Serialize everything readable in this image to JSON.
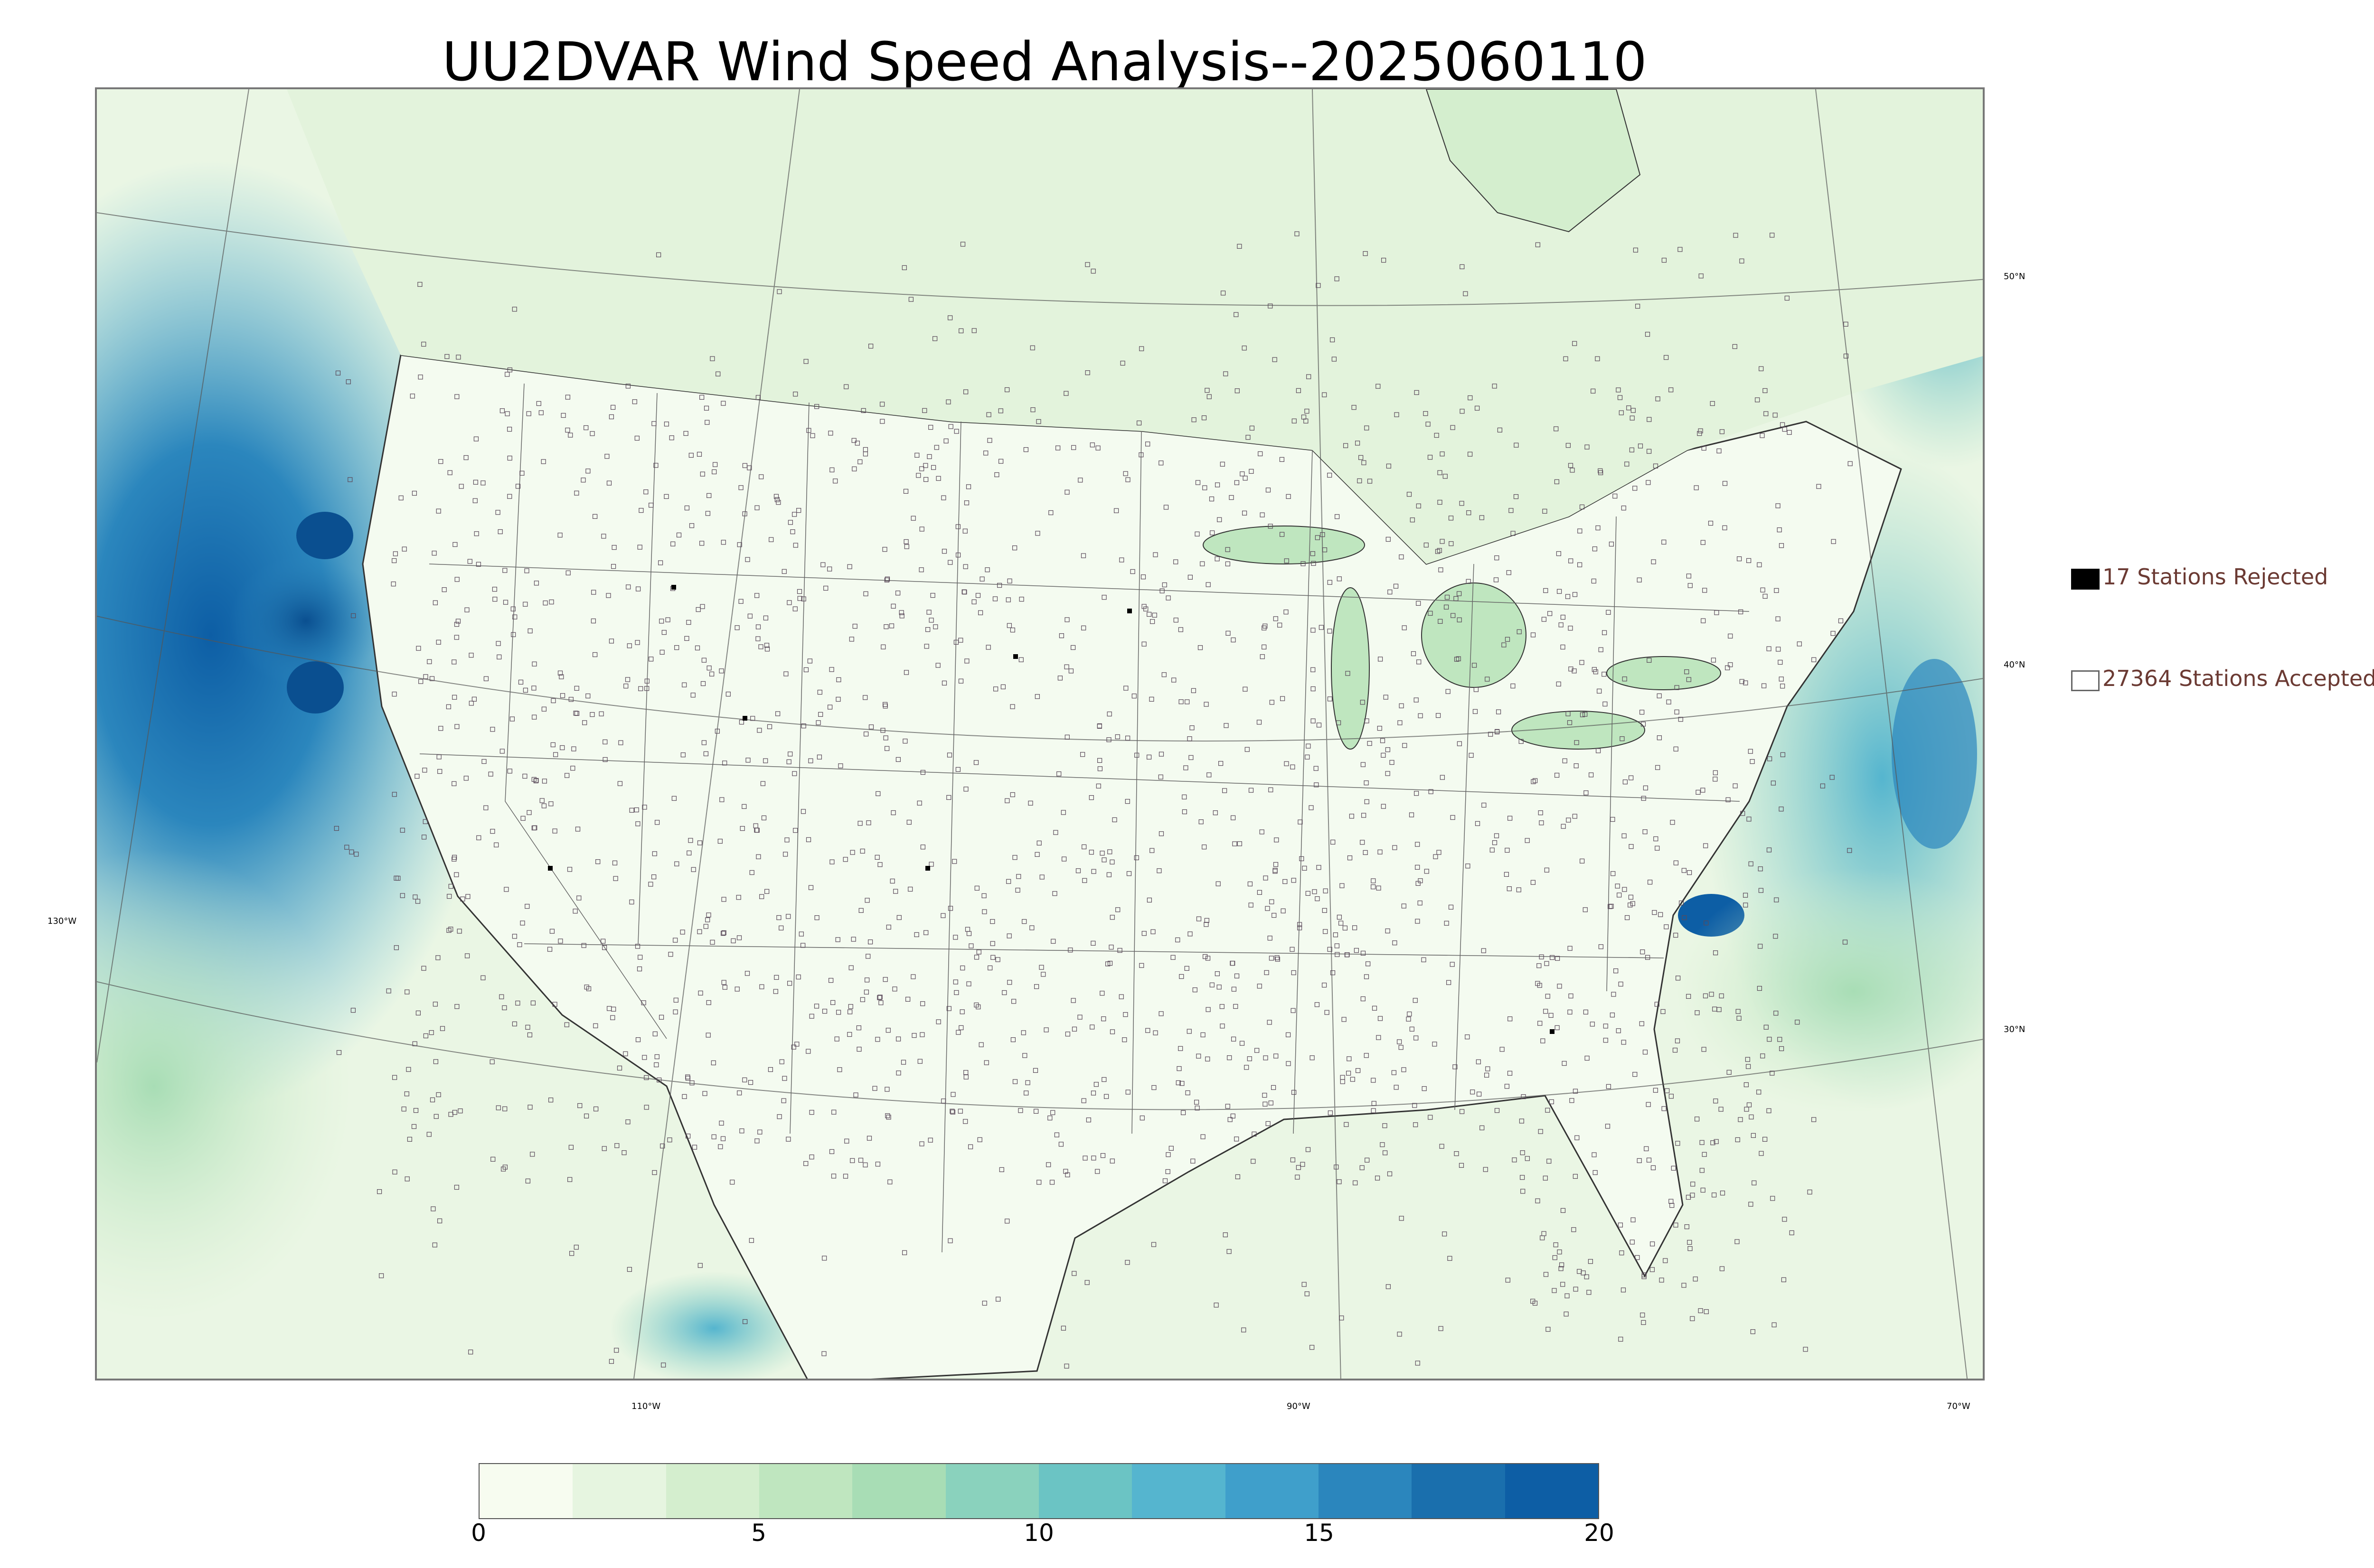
{
  "title": "UU2DVAR Wind Speed Analysis--2025060110",
  "legend": [
    {
      "label": "17 Stations Rejected",
      "swatch": "filled",
      "color": "#000000"
    },
    {
      "label": "27364 Stations Accepted",
      "swatch": "hollow",
      "color": "#ffffff"
    }
  ],
  "latitude_labels": [
    "50°N",
    "40°N",
    "30°N"
  ],
  "longitude_labels": [
    "130°W",
    "110°W",
    "90°W",
    "70°W"
  ],
  "colorbar": {
    "min": 0,
    "max": 20,
    "ticks": [
      "0",
      "5",
      "10",
      "15",
      "20"
    ],
    "colors": [
      "#f7fcf0",
      "#e6f5e0",
      "#d4eece",
      "#bfe6bf",
      "#a8ddb5",
      "#8ad2bd",
      "#6bc4c4",
      "#55b5cf",
      "#3f9fcb",
      "#2b86bd",
      "#1a6fad",
      "#0d5ea5"
    ]
  }
}
